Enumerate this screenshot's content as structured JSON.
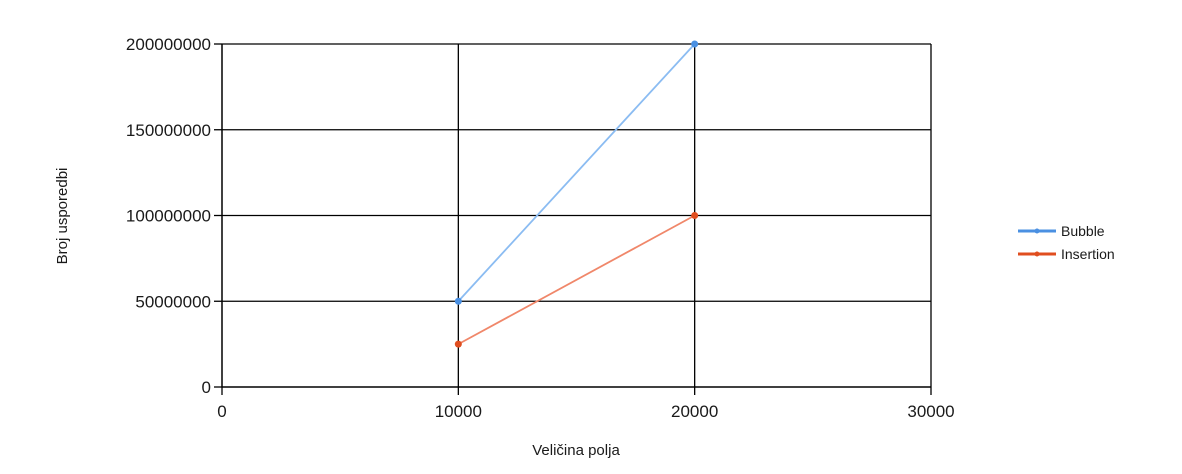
{
  "chart_data": {
    "type": "line",
    "title": "",
    "xlabel": "Veličina polja",
    "ylabel": "Broj usporedbi",
    "xlim": [
      0,
      30000
    ],
    "ylim": [
      0,
      200000000
    ],
    "xticks": [
      0,
      10000,
      20000,
      30000
    ],
    "yticks": [
      0,
      50000000,
      100000000,
      150000000,
      200000000
    ],
    "xtick_labels": [
      "0",
      "10000",
      "20000",
      "30000"
    ],
    "ytick_labels": [
      "0",
      "50000000",
      "100000000",
      "150000000",
      "200000000"
    ],
    "grid": true,
    "legend_position": "right",
    "series": [
      {
        "name": "Bubble",
        "color": "#8bbcf2",
        "marker_color": "#4a90e2",
        "x": [
          10000,
          20000
        ],
        "y": [
          50000000,
          200000000
        ]
      },
      {
        "name": "Insertion",
        "color": "#f0876a",
        "marker_color": "#e04e1f",
        "x": [
          10000,
          20000
        ],
        "y": [
          25000000,
          100000000
        ]
      }
    ]
  }
}
